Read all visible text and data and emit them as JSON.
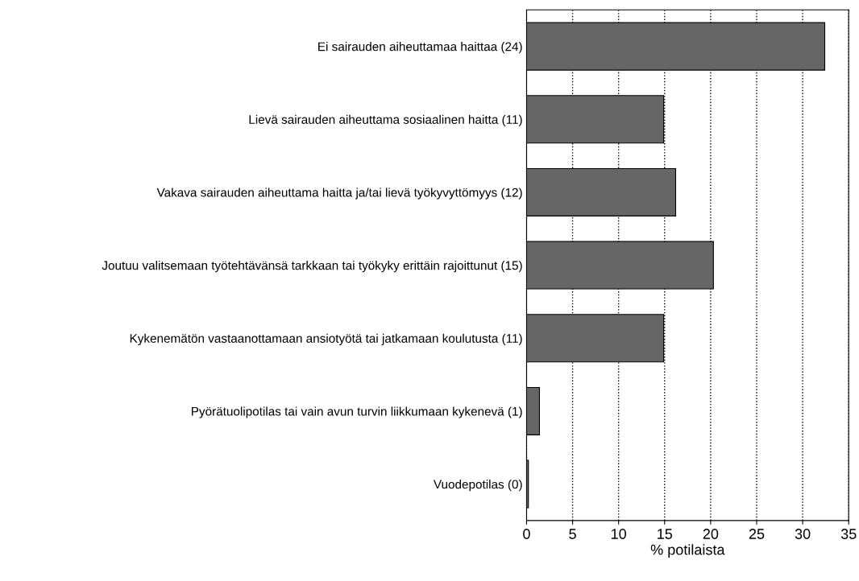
{
  "chart_data": {
    "type": "bar",
    "orientation": "horizontal",
    "xlabel": "% potilaista",
    "categories": [
      "Ei sairauden aiheuttamaa haittaa (24)",
      "Lievä sairauden aiheuttama sosiaalinen haitta (11)",
      "Vakava sairauden aiheuttama haitta ja/tai lievä työkyvyttömyys (12)",
      "Joutuu valitsemaan työtehtävänsä tarkkaan tai työkyky erittäin rajoittunut (15)",
      "Kykenemätön vastaanottamaan ansiotyötä tai jatkamaan koulutusta (11)",
      "Pyörätuolipotilas tai vain avun turvin liikkumaan kykenevä (1)",
      "Vuodepotilas (0)"
    ],
    "values": [
      32.4,
      14.9,
      16.2,
      20.3,
      14.9,
      1.4,
      0.2
    ],
    "color": "#666666",
    "xlim": [
      0,
      35
    ],
    "xticks": [
      0,
      5,
      10,
      15,
      20,
      25,
      30,
      35
    ],
    "grid": "x"
  }
}
